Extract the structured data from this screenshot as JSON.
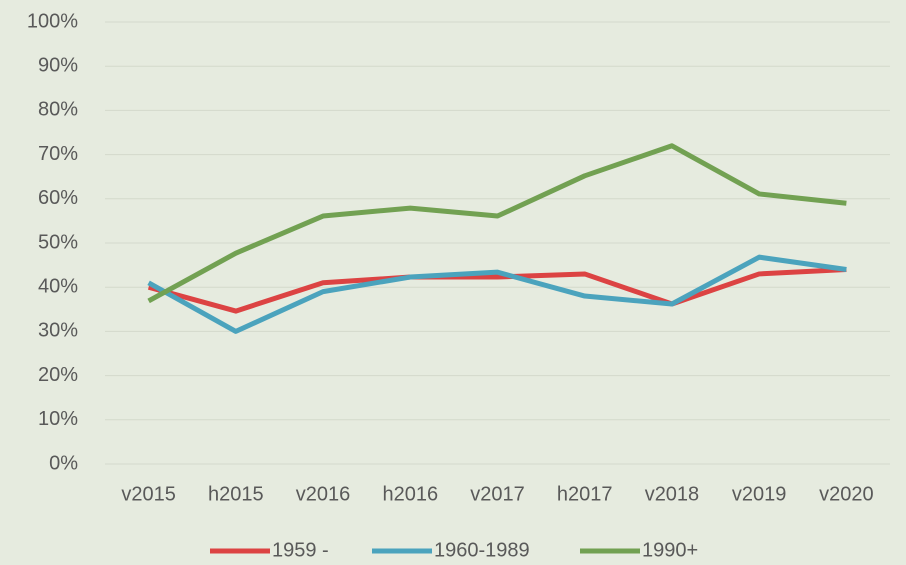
{
  "chart_data": {
    "type": "line",
    "categories": [
      "v2015",
      "h2015",
      "v2016",
      "h2016",
      "v2017",
      "h2017",
      "v2018",
      "v2019",
      "v2020"
    ],
    "series": [
      {
        "name": "1959 -",
        "color": "#dc4343",
        "values": [
          40,
          34.6,
          41,
          42.3,
          42.3,
          43,
          36.2,
          43,
          44
        ]
      },
      {
        "name": "1960-1989",
        "color": "#4ba3bd",
        "values": [
          41,
          30,
          39,
          42.3,
          43.4,
          38,
          36.2,
          46.8,
          44
        ]
      },
      {
        "name": "1990+",
        "color": "#72a152",
        "values": [
          36.9,
          47.7,
          56.1,
          57.9,
          56.1,
          65.2,
          72,
          61.1,
          59
        ]
      }
    ],
    "ylim": [
      0,
      100
    ],
    "yticks": [
      {
        "value": 0,
        "label": "0%"
      },
      {
        "value": 10,
        "label": "10%"
      },
      {
        "value": 20,
        "label": "20%"
      },
      {
        "value": 30,
        "label": "30%"
      },
      {
        "value": 40,
        "label": "40%"
      },
      {
        "value": 50,
        "label": "50%"
      },
      {
        "value": 60,
        "label": "60%"
      },
      {
        "value": 70,
        "label": "70%"
      },
      {
        "value": 80,
        "label": "80%"
      },
      {
        "value": 90,
        "label": "90%"
      },
      {
        "value": 100,
        "label": "100%"
      }
    ],
    "grid": true,
    "legend": "bottom"
  }
}
